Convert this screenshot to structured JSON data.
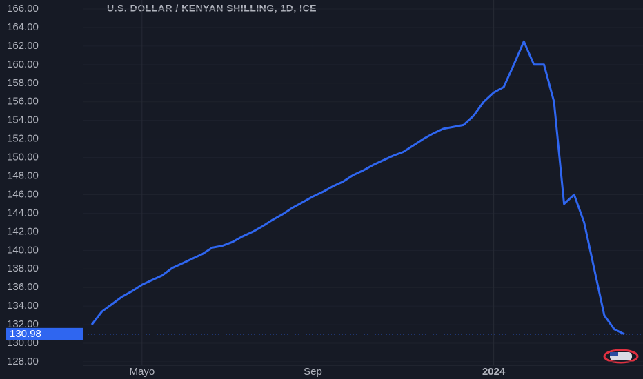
{
  "chart_data": {
    "type": "line",
    "title": "U.S. DOLLAR / KENYAN SHILLING, 1D, ICE",
    "categories": [
      null,
      null,
      null,
      null,
      null,
      "Mayo",
      null,
      null,
      null,
      null,
      null,
      null,
      null,
      null,
      null,
      null,
      null,
      null,
      null,
      null,
      null,
      null,
      "Sep",
      null,
      null,
      null,
      null,
      null,
      null,
      null,
      null,
      null,
      null,
      null,
      null,
      null,
      null,
      null,
      null,
      null,
      "2024",
      null,
      null,
      null,
      null,
      null,
      null,
      null,
      null,
      null,
      null,
      null,
      null,
      null
    ],
    "values": [
      132.0,
      133.4,
      134.2,
      135.0,
      135.6,
      136.3,
      136.8,
      137.3,
      138.1,
      138.6,
      139.1,
      139.6,
      140.3,
      140.5,
      140.9,
      141.5,
      142.0,
      142.6,
      143.3,
      143.9,
      144.6,
      145.2,
      145.8,
      146.3,
      146.9,
      147.4,
      148.1,
      148.6,
      149.2,
      149.7,
      150.2,
      150.6,
      151.3,
      152.0,
      152.6,
      153.1,
      153.3,
      153.5,
      154.5,
      156.0,
      157.0,
      157.6,
      160.0,
      162.5,
      160.0,
      160.0,
      156.0,
      145.0,
      146.0,
      143.0,
      138.0,
      133.0,
      131.5,
      130.98
    ],
    "color": "#2f66f0",
    "ylim": [
      128,
      166
    ],
    "yticks": [
      {
        "value": 128,
        "label": "128.00"
      },
      {
        "value": 130,
        "label": "130.00"
      },
      {
        "value": 132,
        "label": "132.00"
      },
      {
        "value": 134,
        "label": "134.00"
      },
      {
        "value": 136,
        "label": "136.00"
      },
      {
        "value": 138,
        "label": "138.00"
      },
      {
        "value": 140,
        "label": "140.00"
      },
      {
        "value": 142,
        "label": "142.00"
      },
      {
        "value": 144,
        "label": "144.00"
      },
      {
        "value": 146,
        "label": "146.00"
      },
      {
        "value": 148,
        "label": "148.00"
      },
      {
        "value": 150,
        "label": "150.00"
      },
      {
        "value": 152,
        "label": "152.00"
      },
      {
        "value": 154,
        "label": "154.00"
      },
      {
        "value": 156,
        "label": "156.00"
      },
      {
        "value": 158,
        "label": "158.00"
      },
      {
        "value": 160,
        "label": "160.00"
      },
      {
        "value": 162,
        "label": "162.00"
      },
      {
        "value": 164,
        "label": "164.00"
      },
      {
        "value": 166,
        "label": "166.00"
      }
    ],
    "grid": true
  }
}
